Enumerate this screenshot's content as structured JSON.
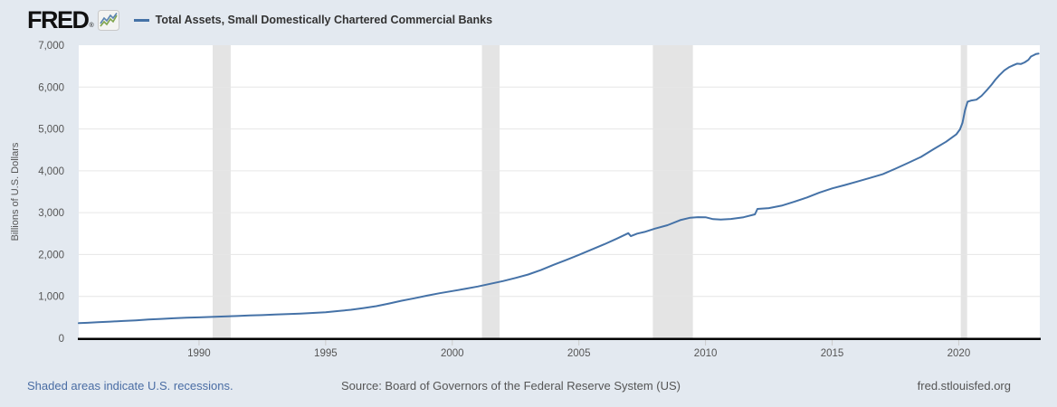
{
  "header": {
    "logo_text": "FRED",
    "registered_mark": "®",
    "series_title": "Total Assets, Small Domestically Chartered Commercial Banks"
  },
  "footer": {
    "recessions_note": "Shaded areas indicate U.S. recessions.",
    "source": "Source: Board of Governors of the Federal Reserve System (US)",
    "site": "fred.stlouisfed.org"
  },
  "colors": {
    "page_bg": "#e3e9f0",
    "plot_bg": "#ffffff",
    "line": "#4572a7",
    "recession_band": "#e4e4e4",
    "gridline": "#e6e6e6",
    "axis": "#000000",
    "tick": "#cccccc",
    "tick_label": "#555555",
    "title_text": "#333333",
    "link": "#4a6da4",
    "footer_text": "#555555",
    "logo_icon_blue": "#5b84b1",
    "logo_icon_green": "#80a54d"
  },
  "chart_data": {
    "type": "line",
    "title": "Total Assets, Small Domestically Chartered Commercial Banks",
    "xlabel": "",
    "ylabel": "Billions of U.S. Dollars",
    "xlim": [
      1985.25,
      2023.2
    ],
    "ylim": [
      0,
      7000
    ],
    "x_ticks": [
      1990,
      1995,
      2000,
      2005,
      2010,
      2015,
      2020
    ],
    "y_ticks": [
      0,
      1000,
      2000,
      3000,
      4000,
      5000,
      6000,
      7000
    ],
    "grid": "horizontal",
    "legend_position": "top-left",
    "recessions": [
      [
        1990.54,
        1991.25
      ],
      [
        2001.17,
        2001.87
      ],
      [
        2007.92,
        2009.5
      ],
      [
        2020.08,
        2020.33
      ]
    ],
    "series": [
      {
        "name": "Total Assets, Small Domestically Chartered Commercial Banks",
        "color": "#4572a7",
        "x": [
          1985.25,
          1985.6,
          1986,
          1986.5,
          1987,
          1987.5,
          1988,
          1988.5,
          1989,
          1989.5,
          1990,
          1990.5,
          1991,
          1991.5,
          1992,
          1992.5,
          1993,
          1993.5,
          1994,
          1994.5,
          1995,
          1995.5,
          1996,
          1996.5,
          1997,
          1997.5,
          1998,
          1998.5,
          1999,
          1999.5,
          2000,
          2000.5,
          2001,
          2001.5,
          2002,
          2002.5,
          2003,
          2003.5,
          2004,
          2004.5,
          2005,
          2005.5,
          2006,
          2006.5,
          2006.95,
          2007.05,
          2007.3,
          2007.6,
          2008,
          2008.5,
          2009,
          2009.4,
          2009.7,
          2010,
          2010.3,
          2010.6,
          2011,
          2011.5,
          2011.95,
          2012.05,
          2012.5,
          2013,
          2013.5,
          2014,
          2014.5,
          2015,
          2015.5,
          2016,
          2016.5,
          2017,
          2017.5,
          2018,
          2018.5,
          2019,
          2019.5,
          2019.9,
          2020.05,
          2020.15,
          2020.25,
          2020.35,
          2020.5,
          2020.7,
          2020.9,
          2021.1,
          2021.3,
          2021.45,
          2021.6,
          2021.8,
          2022.0,
          2022.15,
          2022.3,
          2022.45,
          2022.6,
          2022.75,
          2022.85,
          2022.95,
          2023.05,
          2023.15
        ],
        "y": [
          360,
          370,
          385,
          397,
          412,
          428,
          448,
          462,
          477,
          490,
          500,
          510,
          520,
          532,
          545,
          554,
          565,
          577,
          590,
          605,
          622,
          650,
          681,
          722,
          767,
          830,
          897,
          955,
          1018,
          1075,
          1127,
          1180,
          1235,
          1300,
          1365,
          1440,
          1524,
          1630,
          1754,
          1870,
          1991,
          2120,
          2244,
          2380,
          2510,
          2440,
          2500,
          2540,
          2618,
          2700,
          2822,
          2880,
          2893,
          2890,
          2845,
          2835,
          2850,
          2890,
          2960,
          3090,
          3110,
          3167,
          3260,
          3362,
          3480,
          3580,
          3660,
          3745,
          3830,
          3920,
          4050,
          4190,
          4330,
          4515,
          4695,
          4870,
          4990,
          5150,
          5450,
          5650,
          5680,
          5700,
          5790,
          5920,
          6060,
          6180,
          6280,
          6400,
          6480,
          6520,
          6560,
          6550,
          6590,
          6650,
          6730,
          6760,
          6790,
          6800
        ]
      }
    ]
  }
}
